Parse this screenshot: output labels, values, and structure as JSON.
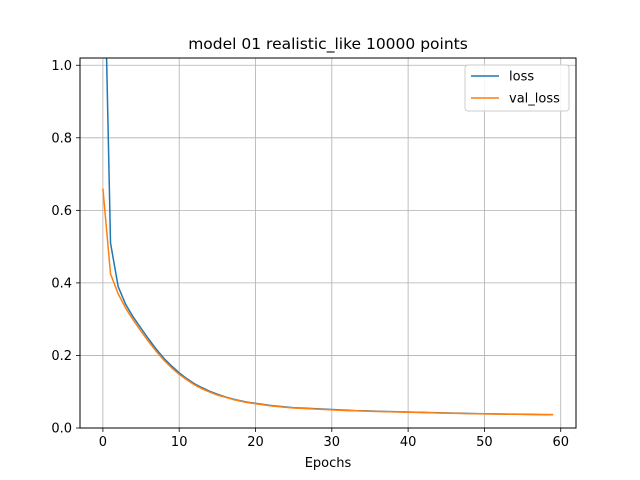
{
  "chart_data": {
    "type": "line",
    "title": "model 01 realistic_like 10000 points",
    "xlabel": "Epochs",
    "ylabel": "",
    "xlim": [
      -3,
      62
    ],
    "ylim": [
      0,
      1.02
    ],
    "xticks": [
      0,
      10,
      20,
      30,
      40,
      50,
      60
    ],
    "yticks": [
      0.0,
      0.2,
      0.4,
      0.6,
      0.8,
      1.0
    ],
    "xtick_labels": [
      "0",
      "10",
      "20",
      "30",
      "40",
      "50",
      "60"
    ],
    "ytick_labels": [
      "0.0",
      "0.2",
      "0.4",
      "0.6",
      "0.8",
      "1.0"
    ],
    "grid": true,
    "legend_position": "top-right",
    "x": [
      0,
      1,
      2,
      3,
      4,
      5,
      6,
      7,
      8,
      9,
      10,
      11,
      12,
      13,
      14,
      15,
      16,
      17,
      18,
      19,
      20,
      21,
      22,
      23,
      24,
      25,
      26,
      27,
      28,
      29,
      30,
      31,
      32,
      33,
      34,
      35,
      36,
      37,
      38,
      39,
      40,
      41,
      42,
      43,
      44,
      45,
      46,
      47,
      48,
      49,
      50,
      51,
      52,
      53,
      54,
      55,
      56,
      57,
      58,
      59
    ],
    "series": [
      {
        "name": "loss",
        "color": "#1f77b4",
        "values": [
          1.5,
          0.51,
          0.39,
          0.34,
          0.305,
          0.275,
          0.245,
          0.217,
          0.192,
          0.171,
          0.152,
          0.136,
          0.122,
          0.111,
          0.101,
          0.093,
          0.086,
          0.08,
          0.075,
          0.071,
          0.068,
          0.065,
          0.062,
          0.06,
          0.058,
          0.056,
          0.055,
          0.054,
          0.053,
          0.052,
          0.051,
          0.05,
          0.049,
          0.048,
          0.0475,
          0.047,
          0.046,
          0.0455,
          0.045,
          0.0445,
          0.044,
          0.0435,
          0.043,
          0.0425,
          0.042,
          0.0415,
          0.041,
          0.0405,
          0.04,
          0.0397,
          0.0393,
          0.039,
          0.0387,
          0.0384,
          0.0381,
          0.0378,
          0.0375,
          0.0372,
          0.037,
          0.0368
        ]
      },
      {
        "name": "val_loss",
        "color": "#ff7f0e",
        "values": [
          0.66,
          0.425,
          0.37,
          0.33,
          0.297,
          0.267,
          0.238,
          0.211,
          0.187,
          0.166,
          0.148,
          0.133,
          0.119,
          0.108,
          0.099,
          0.091,
          0.085,
          0.079,
          0.074,
          0.07,
          0.067,
          0.064,
          0.061,
          0.059,
          0.057,
          0.055,
          0.054,
          0.053,
          0.052,
          0.051,
          0.05,
          0.049,
          0.048,
          0.0475,
          0.047,
          0.046,
          0.0455,
          0.045,
          0.0445,
          0.044,
          0.0435,
          0.043,
          0.0425,
          0.042,
          0.0415,
          0.041,
          0.0405,
          0.04,
          0.0397,
          0.0393,
          0.039,
          0.0387,
          0.0384,
          0.0381,
          0.0378,
          0.0375,
          0.0372,
          0.037,
          0.0368,
          0.0365
        ]
      }
    ]
  }
}
